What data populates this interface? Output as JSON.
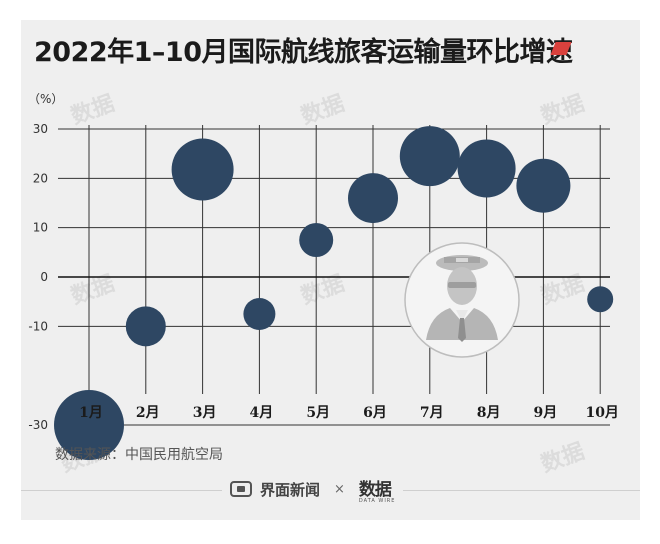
{
  "title": "2022年1–10月国际航线旅客运输量环比增速",
  "source": "数据来源：中国民用航空局",
  "brand": {
    "name": "界面新闻",
    "separator": "×",
    "partner": "数据",
    "partner_sub": "DATA WIRE"
  },
  "watermark": "数据",
  "colors": {
    "bubble": "#2e4763",
    "title_mark": "#d9413d",
    "axis": "#111111",
    "grid": "#333333"
  },
  "chart_data": {
    "type": "scatter",
    "ylabel": "（%）",
    "ylim": [
      -35,
      30
    ],
    "yticks": [
      30,
      20,
      10,
      0,
      -10,
      -30
    ],
    "categories": [
      "1月",
      "2月",
      "3月",
      "4月",
      "5月",
      "6月",
      "7月",
      "8月",
      "9月",
      "10月"
    ],
    "values": [
      -30,
      -10,
      21.8,
      -7.5,
      7.5,
      16,
      24.5,
      22,
      18.5,
      -4.5
    ],
    "bubble_size": [
      35,
      20,
      31,
      16,
      17,
      25,
      30,
      29,
      27,
      13
    ],
    "grid": true
  }
}
